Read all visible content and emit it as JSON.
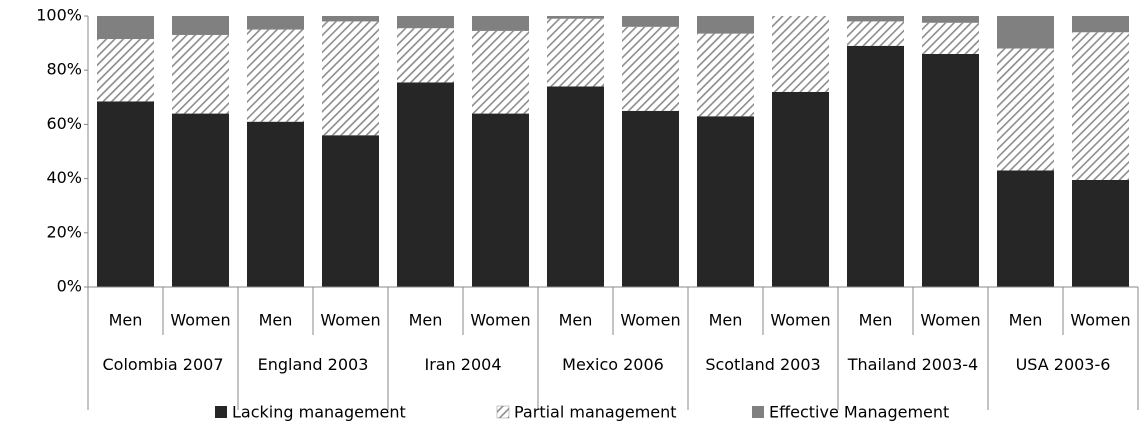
{
  "chart_data": {
    "type": "stacked_bar",
    "groups": [
      "Colombia 2007",
      "England 2003",
      "Iran 2004",
      "Mexico 2006",
      "Scotland 2003",
      "Thailand 2003-4",
      "USA 2003-6"
    ],
    "categories": [
      "Men",
      "Women",
      "Men",
      "Women",
      "Men",
      "Women",
      "Men",
      "Women",
      "Men",
      "Women",
      "Men",
      "Women",
      "Men",
      "Women"
    ],
    "series": [
      {
        "name": "Lacking management",
        "color": "#262626",
        "values": [
          68.5,
          64,
          61,
          56,
          75.5,
          64,
          74,
          65,
          63,
          72,
          89,
          86,
          43,
          39.5
        ]
      },
      {
        "name": "Partial management",
        "color": "#8c8c8c",
        "pattern": "hatch",
        "values": [
          23,
          29,
          34,
          42,
          20,
          30.5,
          25,
          31,
          30.5,
          28,
          9,
          11.5,
          45,
          54.5
        ]
      },
      {
        "name": "Effective Management",
        "color": "#808080",
        "values": [
          8.5,
          7,
          5,
          2,
          4.5,
          5.5,
          1,
          4,
          6.5,
          0,
          2,
          2.5,
          12,
          6
        ]
      }
    ],
    "ylim": [
      0,
      100
    ],
    "yticks": [
      {
        "value": 0,
        "label": "0%"
      },
      {
        "value": 20,
        "label": "20%"
      },
      {
        "value": 40,
        "label": "40%"
      },
      {
        "value": 60,
        "label": "60%"
      },
      {
        "value": 80,
        "label": "80%"
      },
      {
        "value": 100,
        "label": "100%"
      }
    ],
    "grid": false,
    "legend": "bottom"
  }
}
